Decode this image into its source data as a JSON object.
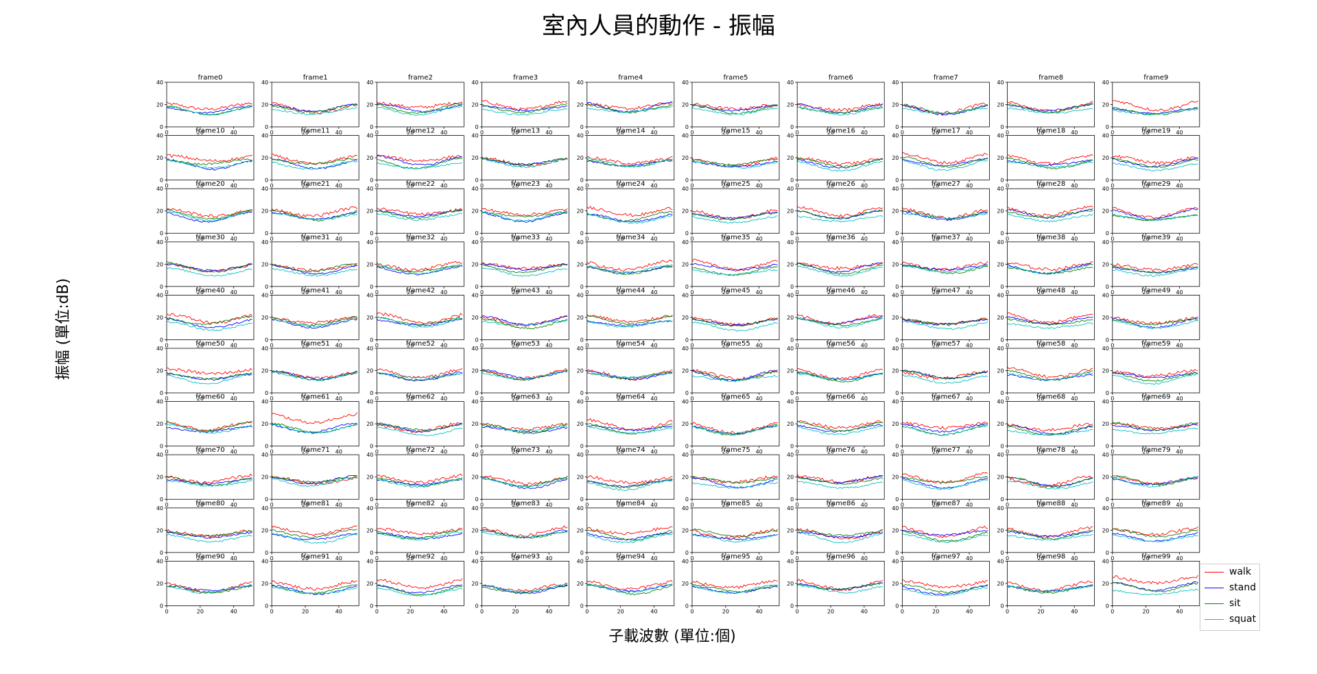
{
  "title": "室內人員的動作 - 振幅",
  "colors": {
    "walk": "#ff0000",
    "stand": "#0000ff",
    "sit": "#008000",
    "squat": "#00bfbf"
  },
  "chart_data": {
    "type": "line",
    "title": "室內人員的動作 - 振幅",
    "xlabel": "子載波數 (單位:個)",
    "ylabel": "振幅 (單位:dB)",
    "xlim": [
      0,
      52
    ],
    "ylim": [
      0,
      40
    ],
    "xticks": [
      "0",
      "20",
      "40"
    ],
    "yticks": [
      "0",
      "20",
      "40"
    ],
    "grid": false,
    "legend_position": "bottom-right",
    "series_names": [
      "walk",
      "stand",
      "sit",
      "squat"
    ],
    "subplot_titles": [
      "frame0",
      "frame1",
      "frame2",
      "frame3",
      "frame4",
      "frame5",
      "frame6",
      "frame7",
      "frame8",
      "frame9",
      "frame10",
      "frame11",
      "frame12",
      "frame13",
      "frame14",
      "frame15",
      "frame16",
      "frame17",
      "frame18",
      "frame19",
      "frame20",
      "frame21",
      "frame22",
      "frame23",
      "frame24",
      "frame25",
      "frame26",
      "frame27",
      "frame28",
      "frame29",
      "frame30",
      "frame31",
      "frame32",
      "frame33",
      "frame34",
      "frame35",
      "frame36",
      "frame37",
      "frame38",
      "frame39",
      "frame40",
      "frame41",
      "frame42",
      "frame43",
      "frame44",
      "frame45",
      "frame46",
      "frame47",
      "frame48",
      "frame49",
      "frame50",
      "frame51",
      "frame52",
      "frame53",
      "frame54",
      "frame55",
      "frame56",
      "frame57",
      "frame58",
      "frame59",
      "frame60",
      "frame61",
      "frame62",
      "frame63",
      "frame64",
      "frame65",
      "frame66",
      "frame67",
      "frame68",
      "frame69",
      "frame70",
      "frame71",
      "frame72",
      "frame73",
      "frame74",
      "frame75",
      "frame76",
      "frame77",
      "frame78",
      "frame79",
      "frame80",
      "frame81",
      "frame82",
      "frame83",
      "frame84",
      "frame85",
      "frame86",
      "frame87",
      "frame88",
      "frame89",
      "frame90",
      "frame91",
      "frame92",
      "frame93",
      "frame94",
      "frame95",
      "frame96",
      "frame97",
      "frame98",
      "frame99"
    ],
    "approx_level_db": {
      "walk": 18,
      "stand": 16,
      "sit": 16,
      "squat": 14
    },
    "notable_frames": {
      "frame61": {
        "walk": 25
      },
      "frame99": {
        "walk": 24
      }
    }
  }
}
